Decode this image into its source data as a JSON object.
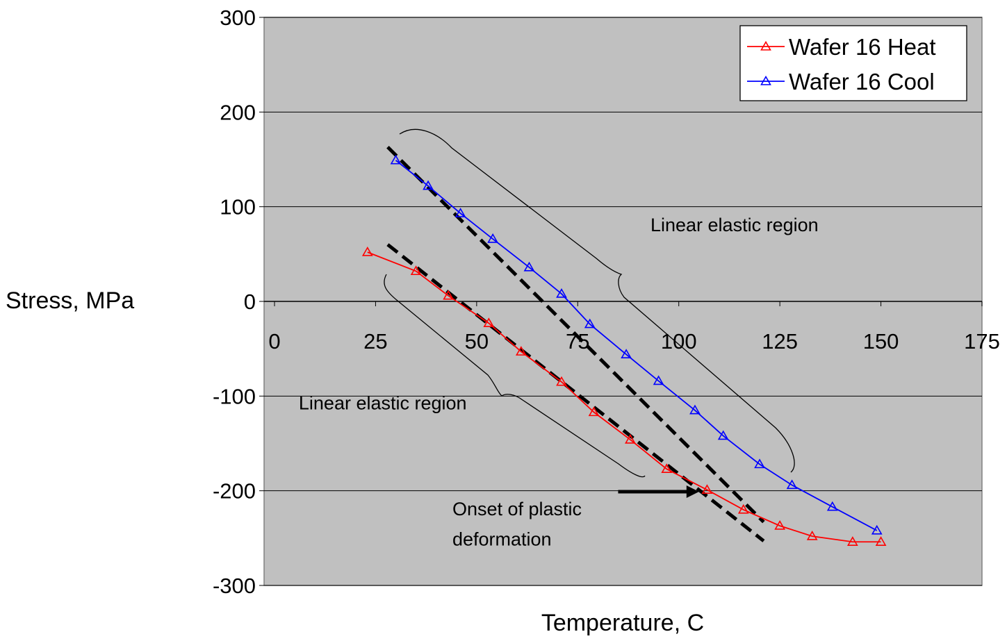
{
  "chart_data": {
    "type": "line",
    "xlabel": "Temperature, C",
    "ylabel": "Stress, MPa",
    "xlim": [
      0,
      175
    ],
    "ylim": [
      -300,
      300
    ],
    "x_ticks": [
      0,
      25,
      50,
      75,
      100,
      125,
      150,
      175
    ],
    "y_ticks": [
      300,
      200,
      100,
      0,
      -100,
      -200,
      -300
    ],
    "grid": "horizontal",
    "plot_background": "#c0c0c0",
    "legend_position": "top-right",
    "series": [
      {
        "name": "Wafer 16 Heat",
        "color": "#ff0000",
        "marker": "triangle",
        "x": [
          23,
          35,
          43,
          53,
          61,
          71,
          79,
          88,
          97,
          107,
          116,
          125,
          133,
          143,
          150
        ],
        "y": [
          52,
          32,
          6,
          -23,
          -53,
          -85,
          -117,
          -146,
          -177,
          -199,
          -220,
          -237,
          -248,
          -254,
          -254
        ]
      },
      {
        "name": "Wafer 16 Cool",
        "color": "#0000ff",
        "marker": "triangle",
        "x": [
          30,
          38,
          46,
          54,
          63,
          71,
          78,
          87,
          95,
          104,
          111,
          120,
          128,
          138,
          149
        ],
        "y": [
          149,
          122,
          93,
          66,
          36,
          8,
          -24,
          -56,
          -84,
          -115,
          -142,
          -172,
          -194,
          -217,
          -242
        ]
      }
    ],
    "fit_lines": [
      {
        "color": "#000000",
        "style": "dashed",
        "x": [
          28,
          121
        ],
        "y": [
          60,
          -253
        ]
      },
      {
        "color": "#000000",
        "style": "dashed",
        "x": [
          28,
          121
        ],
        "y": [
          163,
          -233
        ]
      }
    ],
    "annotations": [
      {
        "text": "Linear elastic region",
        "x": 93,
        "y": 74
      },
      {
        "text": "Linear elastic region",
        "x": 6,
        "y": -114
      },
      {
        "text": "Onset of plastic",
        "x": 44,
        "y": -226
      },
      {
        "text": "deformation",
        "x": 44,
        "y": -258
      }
    ],
    "arrow": {
      "from": [
        85,
        -201
      ],
      "to": [
        105,
        -201
      ]
    }
  }
}
